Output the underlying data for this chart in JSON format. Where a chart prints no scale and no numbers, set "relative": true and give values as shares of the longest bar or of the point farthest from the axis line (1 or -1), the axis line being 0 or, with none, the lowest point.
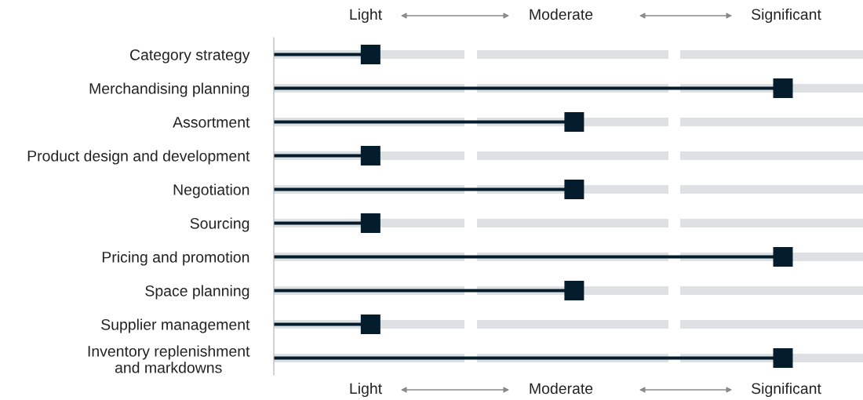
{
  "chart_data": {
    "type": "lollipop",
    "categories": [
      "Category strategy",
      "Merchandising planning",
      "Assortment",
      "Product design and development",
      "Negotiation",
      "Sourcing",
      "Pricing and promotion",
      "Space planning",
      "Supplier management",
      "Inventory replenishment\nand markdowns"
    ],
    "values": [
      0.19,
      1,
      0.59,
      0.19,
      0.59,
      0.19,
      1,
      0.59,
      0.19,
      1
    ],
    "relative": true,
    "orientation": "horizontal",
    "color": "#051c2c",
    "marker": "square",
    "annotations": [
      "Light",
      "Moderate",
      "Significant",
      "Light",
      "Moderate",
      "Significant"
    ],
    "grid": "y"
  }
}
